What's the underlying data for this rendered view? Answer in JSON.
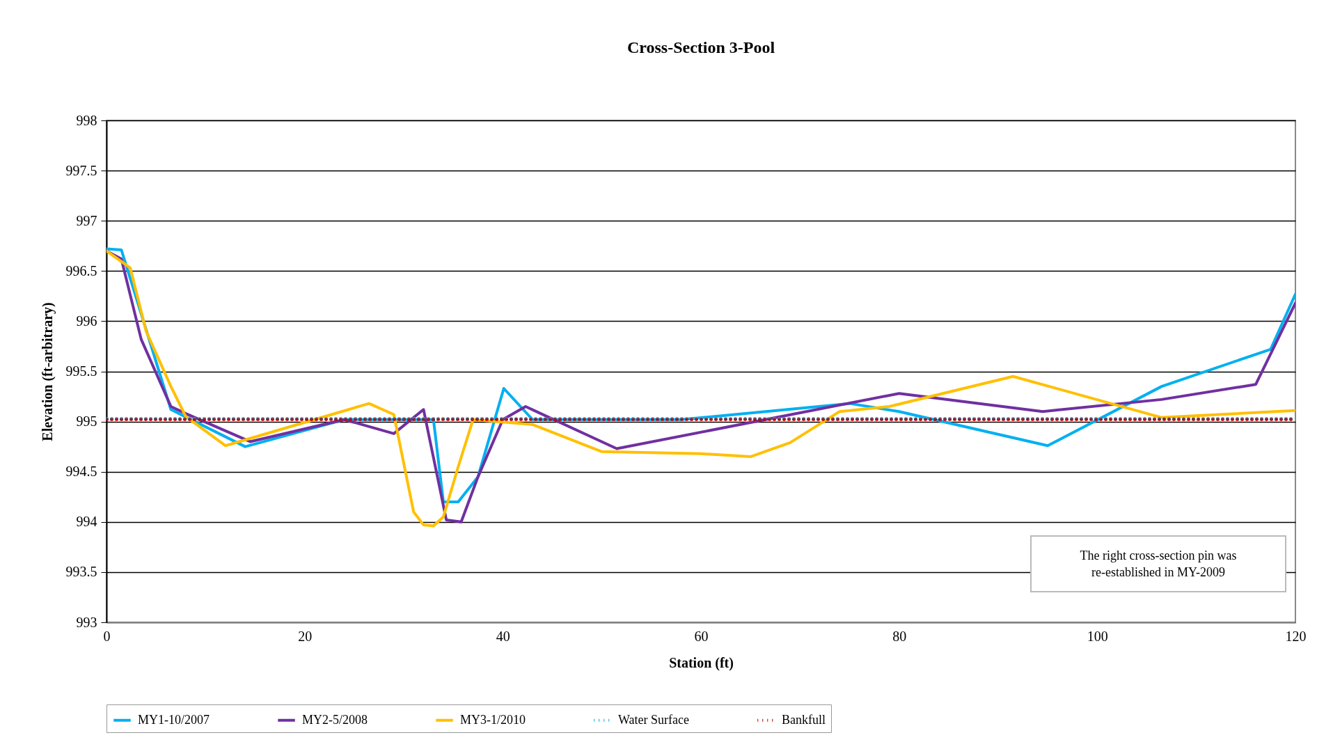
{
  "chart_data": {
    "type": "line",
    "title": "Cross-Section 3-Pool",
    "xlabel": "Station (ft)",
    "ylabel": "Elevation (ft-arbitrary)",
    "xlim": [
      0,
      120
    ],
    "xticks": [
      0,
      20,
      40,
      60,
      80,
      100,
      120
    ],
    "ylim": [
      993,
      998
    ],
    "yticks": [
      993,
      993.5,
      994,
      994.5,
      995,
      995.5,
      996,
      996.5,
      997,
      997.5,
      998
    ],
    "grid": "y",
    "legend": "bottom",
    "line_style": "solid",
    "annotations": [
      "The right cross-section pin was re-established in MY-2009"
    ],
    "series": [
      {
        "name": "MY1-10/2007",
        "color": "#00b0f0",
        "x": [
          0,
          1.5,
          6.5,
          14,
          24,
          33,
          34,
          35.5,
          37.5,
          40.1,
          43,
          58,
          75,
          80,
          95,
          106.5,
          117.5,
          120
        ],
        "values": [
          996.72,
          996.71,
          995.12,
          994.75,
          995.02,
          995.02,
          994.2,
          994.2,
          994.45,
          995.33,
          995.02,
          995.02,
          995.18,
          995.1,
          994.76,
          995.35,
          995.72,
          996.27
        ]
      },
      {
        "name": "MY2-5/2008",
        "color": "#7030a0",
        "x": [
          0,
          1.5,
          3.5,
          6.5,
          8,
          14.5,
          24,
          29,
          32,
          34.3,
          35.8,
          37.5,
          40,
          42.3,
          51.5,
          80,
          94.5,
          106.5,
          116,
          120
        ],
        "values": [
          996.7,
          996.62,
          995.82,
          995.15,
          995.08,
          994.8,
          995.02,
          994.88,
          995.12,
          994.02,
          994.0,
          994.45,
          995.02,
          995.15,
          994.73,
          995.28,
          995.1,
          995.22,
          995.37,
          996.18
        ]
      },
      {
        "name": "MY3-1/2010",
        "color": "#ffc000",
        "x": [
          0,
          2.4,
          4,
          6.5,
          8,
          12,
          26.5,
          29,
          31,
          32,
          33,
          34,
          35.5,
          37,
          43,
          50,
          60,
          65,
          69,
          74,
          79,
          91.5,
          106.5,
          120
        ],
        "values": [
          996.7,
          996.53,
          995.9,
          995.35,
          995.05,
          994.76,
          995.18,
          995.07,
          994.1,
          993.97,
          993.96,
          994.05,
          994.55,
          995.02,
          994.97,
          994.7,
          994.68,
          994.65,
          994.79,
          995.1,
          995.15,
          995.45,
          995.04,
          995.11
        ]
      },
      {
        "name": "Water Surface",
        "color": "#00b0f0",
        "line_style": "dotted",
        "x": [
          0,
          120
        ],
        "values": [
          995.03,
          995.03
        ]
      },
      {
        "name": "Bankfull",
        "color": "#c00000",
        "line_style": "dotted",
        "x": [
          0,
          120
        ],
        "values": [
          995.02,
          995.02
        ]
      }
    ]
  }
}
